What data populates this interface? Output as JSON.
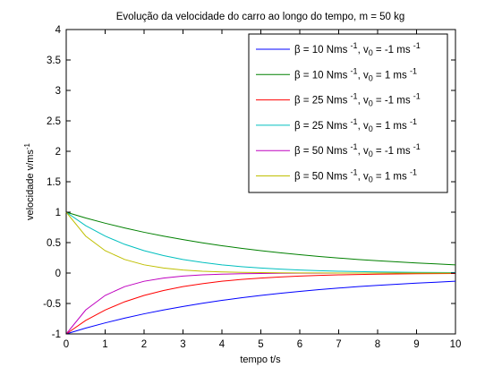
{
  "chart_data": {
    "type": "line",
    "title": "Evolução da velocidade do carro ao longo do tempo, m = 50 kg",
    "xlabel": "tempo t/s",
    "ylabel": {
      "main": "velocidade v/ms",
      "sup": "-1"
    },
    "xlim": [
      0,
      10
    ],
    "ylim": [
      -1,
      4
    ],
    "xticks": [
      "0",
      "1",
      "2",
      "3",
      "4",
      "5",
      "6",
      "7",
      "8",
      "9",
      "10"
    ],
    "yticks": [
      "-1",
      "-0.5",
      "0",
      "0.5",
      "1",
      "1.5",
      "2",
      "2.5",
      "3",
      "3.5",
      "4"
    ],
    "grid": false,
    "legend_position": "top-right",
    "x": [
      0,
      0.5,
      1,
      1.5,
      2,
      2.5,
      3,
      3.5,
      4,
      4.5,
      5,
      5.5,
      6,
      6.5,
      7,
      7.5,
      8,
      8.5,
      9,
      9.5,
      10
    ],
    "series": [
      {
        "name": "β = 10 Nms -1, v0 = -1 ms -1",
        "legend": {
          "a": "β = 10 Nms ",
          "sup1": "-1",
          "b": ", v",
          "sub": "0",
          "c": " = -1 ms ",
          "sup2": "-1"
        },
        "color": "#0000ff",
        "values": [
          -1,
          -0.905,
          -0.819,
          -0.741,
          -0.67,
          -0.607,
          -0.549,
          -0.497,
          -0.449,
          -0.407,
          -0.368,
          -0.333,
          -0.301,
          -0.273,
          -0.247,
          -0.223,
          -0.202,
          -0.183,
          -0.165,
          -0.15,
          -0.135
        ]
      },
      {
        "name": "β = 10 Nms -1, v0 = 1 ms -1",
        "legend": {
          "a": "β = 10 Nms ",
          "sup1": "-1",
          "b": ", v",
          "sub": "0",
          "c": " = 1 ms ",
          "sup2": "-1"
        },
        "color": "#008000",
        "values": [
          1,
          0.905,
          0.819,
          0.741,
          0.67,
          0.607,
          0.549,
          0.497,
          0.449,
          0.407,
          0.368,
          0.333,
          0.301,
          0.273,
          0.247,
          0.223,
          0.202,
          0.183,
          0.165,
          0.15,
          0.135
        ]
      },
      {
        "name": "β = 25 Nms -1, v0 = -1 ms -1",
        "legend": {
          "a": "β = 25 Nms ",
          "sup1": "-1",
          "b": ", v",
          "sub": "0",
          "c": " = -1 ms ",
          "sup2": "-1"
        },
        "color": "#ff0000",
        "values": [
          -1,
          -0.779,
          -0.607,
          -0.472,
          -0.368,
          -0.287,
          -0.223,
          -0.174,
          -0.135,
          -0.105,
          -0.082,
          -0.064,
          -0.05,
          -0.039,
          -0.03,
          -0.024,
          -0.018,
          -0.014,
          -0.011,
          -0.009,
          -0.007
        ]
      },
      {
        "name": "β = 25 Nms -1, v0 = 1 ms -1",
        "legend": {
          "a": "β = 25 Nms ",
          "sup1": "-1",
          "b": ", v",
          "sub": "0",
          "c": " = 1 ms ",
          "sup2": "-1"
        },
        "color": "#00bfbf",
        "values": [
          1,
          0.779,
          0.607,
          0.472,
          0.368,
          0.287,
          0.223,
          0.174,
          0.135,
          0.105,
          0.082,
          0.064,
          0.05,
          0.039,
          0.03,
          0.024,
          0.018,
          0.014,
          0.011,
          0.009,
          0.007
        ]
      },
      {
        "name": "β = 50 Nms -1, v0 = -1 ms -1",
        "legend": {
          "a": "β = 50 Nms ",
          "sup1": "-1",
          "b": ", v",
          "sub": "0",
          "c": " = -1 ms ",
          "sup2": "-1"
        },
        "color": "#bf00bf",
        "values": [
          -1,
          -0.607,
          -0.368,
          -0.223,
          -0.135,
          -0.082,
          -0.05,
          -0.03,
          -0.018,
          -0.011,
          -0.007,
          -0.004,
          -0.002,
          -0.0015,
          -0.0009,
          -0.0006,
          -0.0003,
          -0.0002,
          -0.0001,
          -0.0001,
          0
        ]
      },
      {
        "name": "β = 50 Nms -1, v0 = 1 ms -1",
        "legend": {
          "a": "β = 50 Nms ",
          "sup1": "-1",
          "b": ", v",
          "sub": "0",
          "c": " = 1 ms ",
          "sup2": "-1"
        },
        "color": "#bfbf00",
        "values": [
          1,
          0.607,
          0.368,
          0.223,
          0.135,
          0.082,
          0.05,
          0.03,
          0.018,
          0.011,
          0.007,
          0.004,
          0.002,
          0.0015,
          0.0009,
          0.0006,
          0.0003,
          0.0002,
          0.0001,
          0.0001,
          0
        ]
      }
    ]
  }
}
